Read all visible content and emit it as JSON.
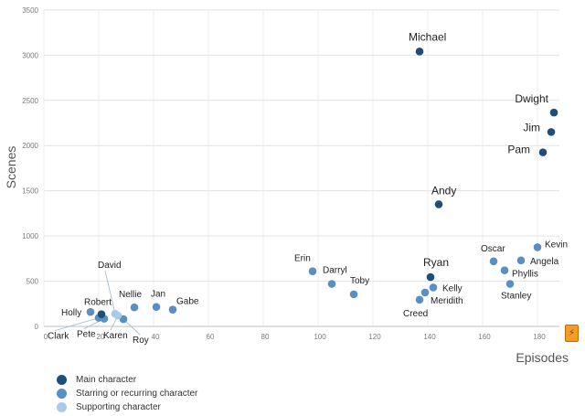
{
  "chart_data": {
    "type": "scatter",
    "title": "",
    "xlabel": "Episodes",
    "ylabel": "Scenes",
    "xlim": [
      0,
      185
    ],
    "ylim": [
      0,
      3500
    ],
    "x_ticks": [
      "0",
      "20",
      "40",
      "60",
      "80",
      "100",
      "120",
      "140",
      "160",
      "180"
    ],
    "y_ticks": [
      "0",
      "500",
      "1000",
      "1500",
      "2000",
      "2500",
      "3000",
      "3500"
    ],
    "grid": true,
    "legend_position": "bottom-left",
    "series": [
      {
        "name": "Main character",
        "color": "#1f4e79",
        "points": [
          {
            "label": "Michael",
            "x": 137,
            "y": 3040
          },
          {
            "label": "Dwight",
            "x": 186,
            "y": 2365
          },
          {
            "label": "Jim",
            "x": 185,
            "y": 2150
          },
          {
            "label": "Pam",
            "x": 182,
            "y": 1925
          },
          {
            "label": "Andy",
            "x": 144,
            "y": 1350
          },
          {
            "label": "Ryan",
            "x": 141,
            "y": 545
          },
          {
            "label": "Robert",
            "x": 21,
            "y": 135
          }
        ]
      },
      {
        "name": "Starring or recurring  character",
        "color": "#5b8fc2",
        "points": [
          {
            "label": "Kevin",
            "x": 180,
            "y": 875
          },
          {
            "label": "Oscar",
            "x": 164,
            "y": 720
          },
          {
            "label": "Angela",
            "x": 174,
            "y": 730
          },
          {
            "label": "Phyllis",
            "x": 168,
            "y": 620
          },
          {
            "label": "Stanley",
            "x": 170,
            "y": 470
          },
          {
            "label": "Erin",
            "x": 98,
            "y": 610
          },
          {
            "label": "Darryl",
            "x": 105,
            "y": 470
          },
          {
            "label": "Toby",
            "x": 113,
            "y": 355
          },
          {
            "label": "Kelly",
            "x": 142,
            "y": 430
          },
          {
            "label": "Meridith",
            "x": 139,
            "y": 375
          },
          {
            "label": "Creed",
            "x": 137,
            "y": 295
          },
          {
            "label": "Jan",
            "x": 41,
            "y": 215
          },
          {
            "label": "Gabe",
            "x": 47,
            "y": 185
          },
          {
            "label": "Nellie",
            "x": 33,
            "y": 210
          },
          {
            "label": "Holly",
            "x": 17,
            "y": 160
          },
          {
            "label": "Clark",
            "x": 20,
            "y": 95
          },
          {
            "label": "Pete",
            "x": 22,
            "y": 85
          },
          {
            "label": "Roy",
            "x": 29,
            "y": 80
          }
        ]
      },
      {
        "name": "Supporting character",
        "color": "#a9cbe8",
        "points": [
          {
            "label": "David",
            "x": 26,
            "y": 140
          },
          {
            "label": "Karen",
            "x": 27,
            "y": 120
          }
        ]
      }
    ]
  }
}
